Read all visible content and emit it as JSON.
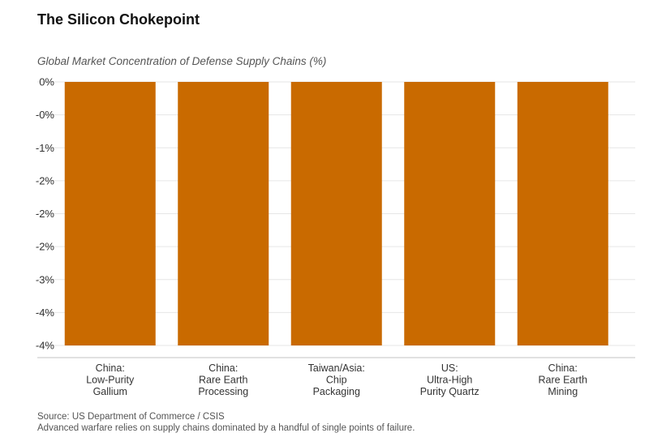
{
  "chart_data": {
    "type": "bar",
    "title": "The Silicon Chokepoint",
    "subtitle": "Global Market Concentration of Defense Supply Chains (%)",
    "categories": [
      [
        "China:",
        "Low-Purity",
        "Gallium"
      ],
      [
        "China:",
        "Rare Earth",
        "Processing"
      ],
      [
        "Taiwan/Asia:",
        "Chip",
        "Packaging"
      ],
      [
        "US:",
        "Ultra-High",
        "Purity Quartz"
      ],
      [
        "China:",
        "Rare Earth",
        "Mining"
      ]
    ],
    "values": [
      -4,
      -4,
      -4,
      -4,
      -4
    ],
    "y_ticks": [
      "0%",
      "-0%",
      "-1%",
      "-2%",
      "-2%",
      "-2%",
      "-3%",
      "-4%",
      "-4%"
    ],
    "ylim": [
      -4,
      0
    ],
    "grid": true,
    "bar_color": "#C96A00"
  },
  "footer": {
    "source": "Source: US Department of Commerce / CSIS",
    "note": "Advanced warfare relies on supply chains dominated by a handful of single points of failure."
  }
}
